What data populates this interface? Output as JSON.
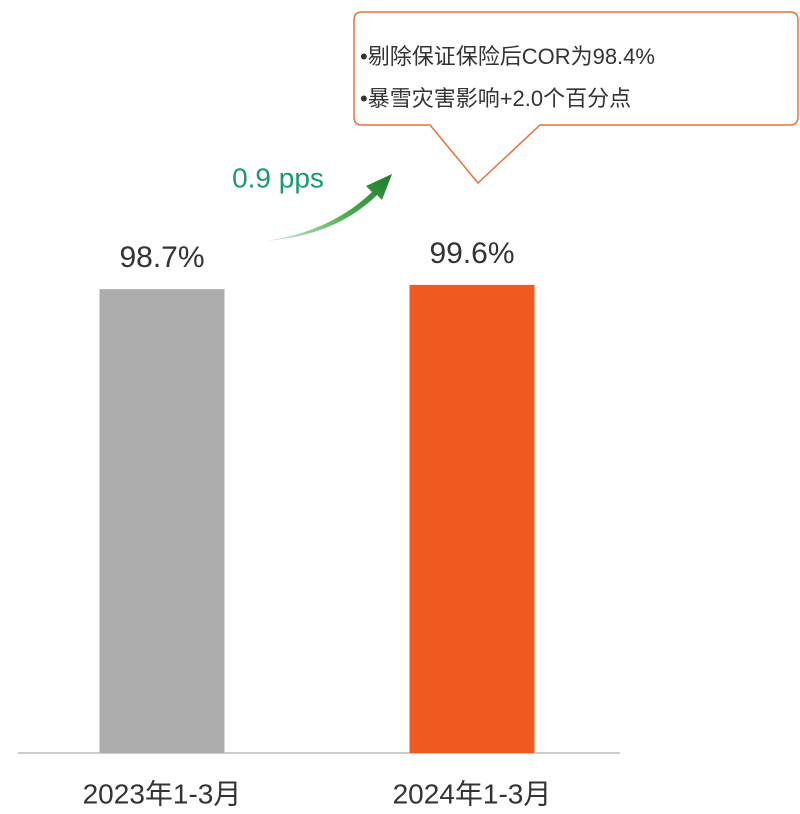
{
  "chart_data": {
    "type": "bar",
    "categories": [
      "2023年1-3月",
      "2024年1-3月"
    ],
    "values": [
      98.7,
      99.6
    ],
    "value_labels": [
      "98.7%",
      "99.6%"
    ],
    "colors": [
      "#adadad",
      "#f05a22"
    ],
    "ylim": [
      0,
      100
    ],
    "annotations": {
      "change": "0.9 pps",
      "notes": [
        "•剔除保证保险后COR为98.4%",
        "•暴雪灾害影响+2.0个百分点"
      ]
    }
  }
}
